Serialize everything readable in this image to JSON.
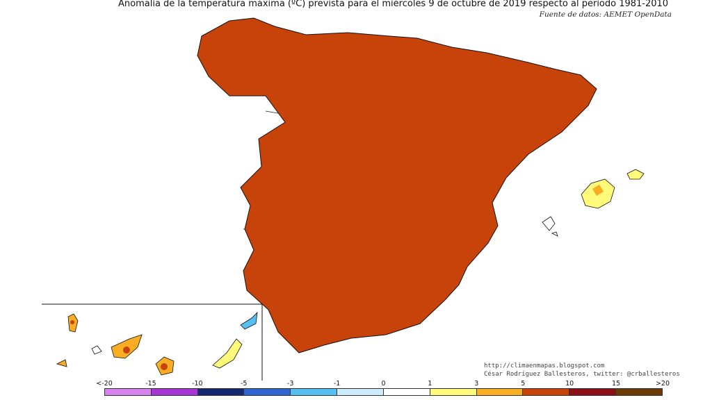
{
  "title": "Anomalía de la temperatura máxima (ºC) prevista para el miércoles 9 de octubre de 2019 respecto al periodo 1981-2010",
  "source": "Fuente de datos: AEMET OpenData",
  "credits": {
    "url": "http://climaenmapas.blogspot.com",
    "author": "César Rodríguez Ballesteros, twitter: @crballesteros"
  },
  "legend": {
    "ticks": [
      "<-20",
      "-15",
      "-10",
      "-5",
      "-3",
      "-1",
      "0",
      "1",
      "3",
      "5",
      "10",
      "15",
      ">20"
    ],
    "colors": [
      "#d883ee",
      "#a836d6",
      "#152a6e",
      "#2e63d2",
      "#55bff2",
      "#cdebfb",
      "#ffffff",
      "#fffa7a",
      "#f9ad23",
      "#c84309",
      "#8c0f14",
      "#6b3b06"
    ]
  },
  "palette": {
    "cold_light": "#cdebfb",
    "cold": "#55bff2",
    "cold_spot": "#2e63d2",
    "warm_light": "#fffa7a",
    "warm": "#f9ad23",
    "hot": "#c84309",
    "very_hot": "#8c0f14"
  }
}
